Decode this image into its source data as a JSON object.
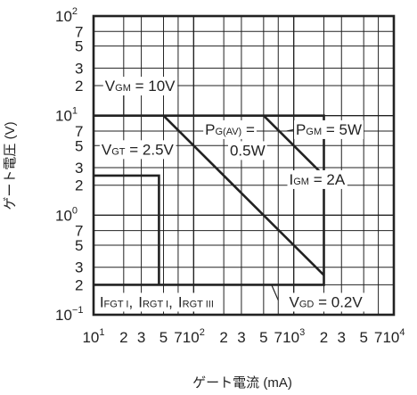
{
  "chart_data": {
    "type": "line",
    "xlabel": "ゲート電流 (mA)",
    "ylabel": "ゲート電圧 (V)",
    "xscale": "log",
    "yscale": "log",
    "xlim": [
      10,
      10000
    ],
    "ylim": [
      0.1,
      100
    ],
    "grid": true,
    "x_ticks": [
      {
        "value": 10,
        "base": "10",
        "exp": "1"
      },
      {
        "value": 20,
        "base": "2"
      },
      {
        "value": 30,
        "base": "3"
      },
      {
        "value": 50,
        "base": "5"
      },
      {
        "value": 70,
        "base": "7"
      },
      {
        "value": 100,
        "base": "10",
        "exp": "2"
      },
      {
        "value": 200,
        "base": "2"
      },
      {
        "value": 300,
        "base": "3"
      },
      {
        "value": 500,
        "base": "5"
      },
      {
        "value": 700,
        "base": "7"
      },
      {
        "value": 1000,
        "base": "10",
        "exp": "3"
      },
      {
        "value": 2000,
        "base": "2"
      },
      {
        "value": 3000,
        "base": "3"
      },
      {
        "value": 5000,
        "base": "5"
      },
      {
        "value": 7000,
        "base": "7"
      },
      {
        "value": 10000,
        "base": "10",
        "exp": "4"
      }
    ],
    "y_ticks": [
      {
        "value": 100,
        "base": "10",
        "exp": "2"
      },
      {
        "value": 70,
        "base": "7"
      },
      {
        "value": 50,
        "base": "5"
      },
      {
        "value": 30,
        "base": "3"
      },
      {
        "value": 20,
        "base": "2"
      },
      {
        "value": 10,
        "base": "10",
        "exp": "1"
      },
      {
        "value": 7,
        "base": "7"
      },
      {
        "value": 5,
        "base": "5"
      },
      {
        "value": 3,
        "base": "3"
      },
      {
        "value": 2,
        "base": "2"
      },
      {
        "value": 1,
        "base": "10",
        "exp": "0"
      },
      {
        "value": 0.7,
        "base": "7"
      },
      {
        "value": 0.5,
        "base": "5"
      },
      {
        "value": 0.3,
        "base": "3"
      },
      {
        "value": 0.2,
        "base": "2"
      },
      {
        "value": 0.1,
        "base": "10",
        "exp": "−1"
      }
    ],
    "series": [
      {
        "name": "gate-area-boundary",
        "points": [
          [
            10,
            10
          ],
          [
            2000,
            10
          ],
          [
            2000,
            0.2
          ],
          [
            10,
            0.2
          ]
        ]
      },
      {
        "name": "vgt-igt-region",
        "points": [
          [
            10,
            2.5
          ],
          [
            45,
            2.5
          ],
          [
            45,
            0.2
          ]
        ]
      },
      {
        "name": "pg-av-line",
        "points": [
          [
            50,
            10
          ],
          [
            2000,
            0.25
          ]
        ]
      },
      {
        "name": "pgm-line",
        "points": [
          [
            500,
            10
          ],
          [
            2000,
            2.5
          ]
        ]
      }
    ],
    "annotations": [
      {
        "id": "vgm",
        "main": "V",
        "sub": "GM",
        "tail": " = 10V",
        "at": [
          13,
          20
        ]
      },
      {
        "id": "pgav",
        "main": "P",
        "sub": "G(AV)",
        "tail": " =",
        "at": [
          130,
          7.3
        ]
      },
      {
        "id": "pgav2",
        "main": "0.5W",
        "sub": "",
        "tail": "",
        "at": [
          230,
          4.5
        ]
      },
      {
        "id": "pgm",
        "main": "P",
        "sub": "GM",
        "tail": " = 5W",
        "at": [
          1050,
          7.3
        ]
      },
      {
        "id": "vgt",
        "main": "V",
        "sub": "GT",
        "tail": " = 2.5V",
        "at": [
          12,
          4.6
        ]
      },
      {
        "id": "igm",
        "main": "I",
        "sub": "GM",
        "tail": " = 2A",
        "at": [
          900,
          2.3
        ]
      },
      {
        "id": "ifgt",
        "main": "I",
        "sub": "FGT I",
        "tail": ", ",
        "at": [
          11.5,
          0.135
        ]
      },
      {
        "id": "irgt1",
        "main": "I",
        "sub": "RGT I",
        "tail": ", ",
        "at": [
          28,
          0.135
        ]
      },
      {
        "id": "irgt3",
        "main": "I",
        "sub": "RGT III",
        "tail": "",
        "at": [
          70,
          0.135
        ]
      },
      {
        "id": "vgd",
        "main": "V",
        "sub": "GD",
        "tail": " = 0.2V",
        "at": [
          900,
          0.135
        ]
      }
    ],
    "leaders": [
      {
        "for": "vgm",
        "from": [
          20,
          20
        ],
        "to": [
          20,
          10
        ]
      },
      {
        "for": "pgav",
        "from": [
          300,
          7.3
        ],
        "to": [
          350,
          6.0
        ]
      },
      {
        "for": "pgm",
        "from": [
          1050,
          7.3
        ],
        "to": [
          850,
          7.0
        ]
      },
      {
        "for": "igm",
        "from": [
          1700,
          2.1
        ],
        "to": [
          2000,
          1.9
        ]
      },
      {
        "for": "vgd",
        "from": [
          700,
          0.14
        ],
        "to": [
          600,
          0.2
        ]
      }
    ]
  }
}
